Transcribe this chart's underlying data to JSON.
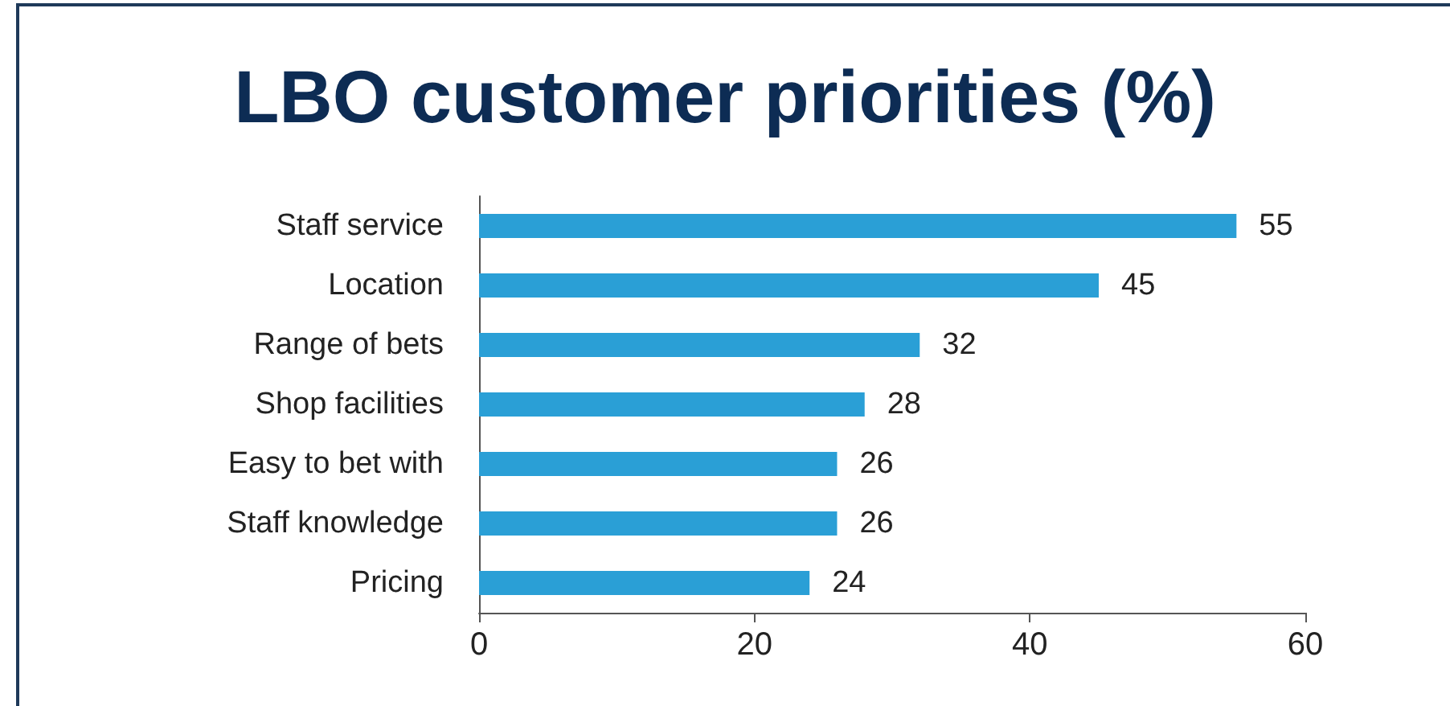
{
  "chart_data": {
    "type": "bar",
    "orientation": "horizontal",
    "title": "LBO customer priorities (%)",
    "categories": [
      "Staff service",
      "Location",
      "Range of bets",
      "Shop facilities",
      "Easy to bet with",
      "Staff knowledge",
      "Pricing"
    ],
    "values": [
      55,
      45,
      32,
      28,
      26,
      26,
      24
    ],
    "color": "#2a9fd6",
    "xlim": [
      0,
      60
    ],
    "xticks": [
      0,
      20,
      40,
      60
    ],
    "grid": false,
    "data_labels": true
  }
}
